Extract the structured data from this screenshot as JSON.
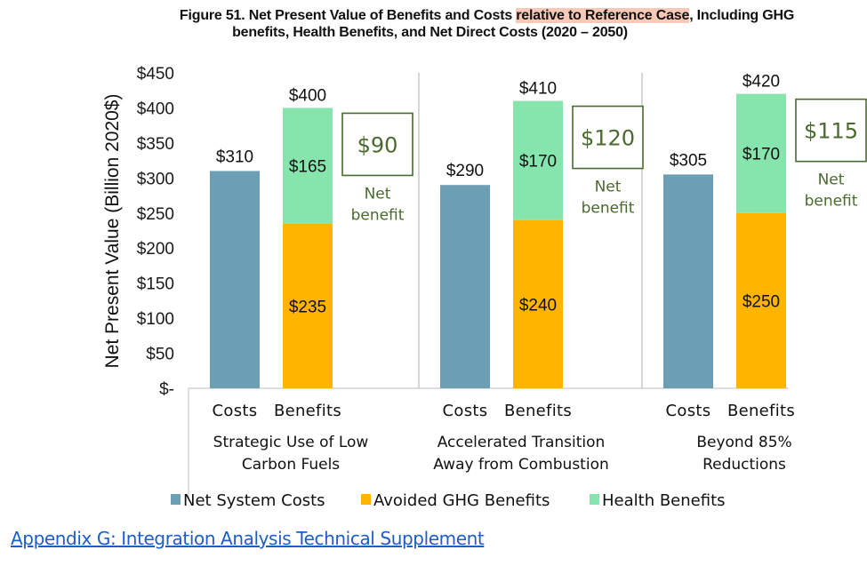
{
  "title": {
    "prefix": "Figure 51. Net Present Value of Benefits and Costs ",
    "highlight": "relative to Reference Case",
    "suffix": ", Including GHG",
    "line2": "benefits, Health Benefits, and Net Direct Costs (2020 – 2050)"
  },
  "link_text": "Appendix G: Integration Analysis Technical Supplement",
  "net_benefit_label": [
    "Net",
    "benefit"
  ],
  "colors": {
    "net_system_costs": "#6c9fb4",
    "avoided_ghg": "#ffb400",
    "health": "#86e5ad",
    "net_benefit": "#4a6b2e",
    "link": "#1a5fc7",
    "highlight": "#f8c9b6"
  },
  "chart_data": {
    "type": "bar",
    "title": "Figure 51. Net Present Value of Benefits and Costs relative to Reference Case, Including GHG benefits, Health Benefits, and Net Direct Costs (2020 – 2050)",
    "ylabel": "Net Present Value (Billion 2020$)",
    "xlabel": "",
    "ylim": [
      0,
      450
    ],
    "yticks": [
      0,
      50,
      100,
      150,
      200,
      250,
      300,
      350,
      400,
      450
    ],
    "ytick_labels": [
      "$-",
      "$50",
      "$100",
      "$150",
      "$200",
      "$250",
      "$300",
      "$350",
      "$400",
      "$450"
    ],
    "grid": false,
    "legend_position": "bottom",
    "legend": [
      "Net System Costs",
      "Avoided GHG Benefits",
      "Health Benefits"
    ],
    "groups": [
      {
        "name": [
          "Strategic Use of Low",
          "Carbon Fuels"
        ],
        "categories": [
          "Costs",
          "Benefits"
        ],
        "costs": {
          "label": "$310",
          "net_system_costs": 310
        },
        "benefits": {
          "total_label": "$400",
          "avoided_ghg": 235,
          "avoided_ghg_label": "$235",
          "health": 165,
          "health_label": "$165",
          "total": 400
        },
        "net_benefit": 90,
        "net_benefit_label": "$90"
      },
      {
        "name": [
          "Accelerated Transition",
          "Away from Combustion"
        ],
        "categories": [
          "Costs",
          "Benefits"
        ],
        "costs": {
          "label": "$290",
          "net_system_costs": 290
        },
        "benefits": {
          "total_label": "$410",
          "avoided_ghg": 240,
          "avoided_ghg_label": "$240",
          "health": 170,
          "health_label": "$170",
          "total": 410
        },
        "net_benefit": 120,
        "net_benefit_label": "$120"
      },
      {
        "name": [
          "Beyond 85%",
          "Reductions"
        ],
        "categories": [
          "Costs",
          "Benefits"
        ],
        "costs": {
          "label": "$305",
          "net_system_costs": 305
        },
        "benefits": {
          "total_label": "$420",
          "avoided_ghg": 250,
          "avoided_ghg_label": "$250",
          "health": 170,
          "health_label": "$170",
          "total": 420
        },
        "net_benefit": 115,
        "net_benefit_label": "$115"
      }
    ]
  }
}
